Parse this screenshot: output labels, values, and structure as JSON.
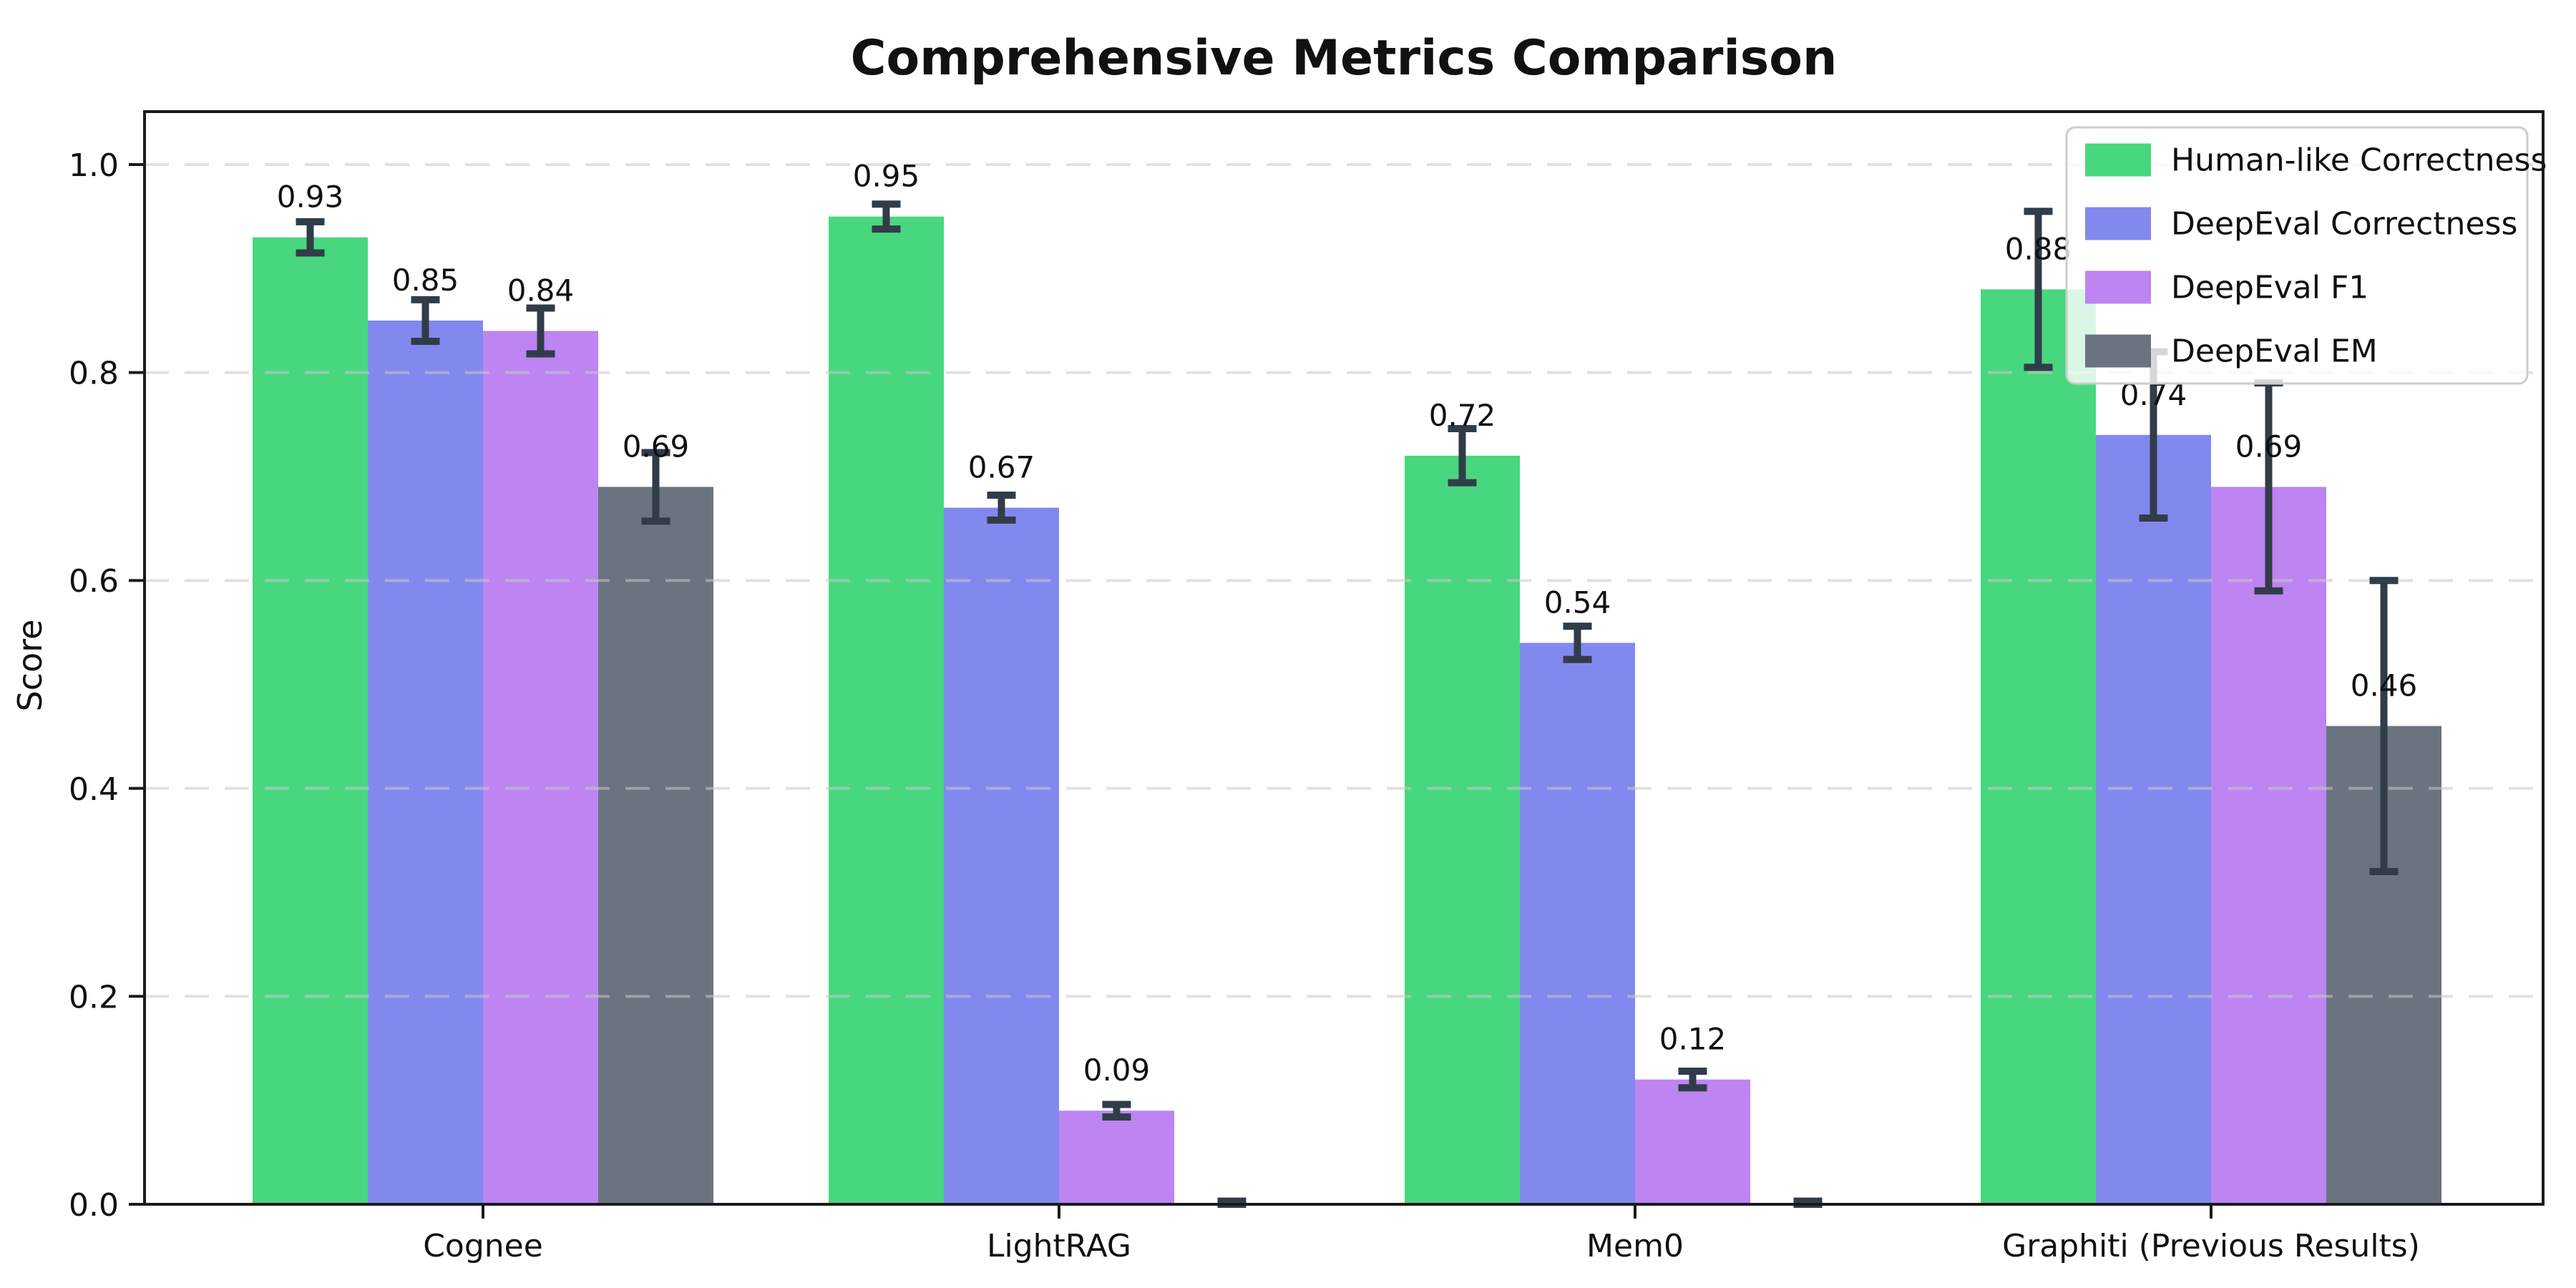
{
  "chart_data": {
    "type": "bar",
    "title": "Comprehensive Metrics Comparison",
    "ylabel": "Score",
    "xlabel": "",
    "ylim": [
      0.0,
      1.05
    ],
    "yticks": [
      0.0,
      0.2,
      0.4,
      0.6,
      0.8,
      1.0
    ],
    "grid": "horizontal-dashed",
    "legend_position": "upper-right",
    "categories": [
      "Cognee",
      "LightRAG",
      "Mem0",
      "Graphiti (Previous Results)"
    ],
    "series": [
      {
        "name": "Human-like Correctness",
        "color": "#48d77e",
        "values": [
          0.93,
          0.95,
          0.72,
          0.88
        ],
        "errors": [
          0.015,
          0.012,
          0.026,
          0.075
        ],
        "labels": [
          "0.93",
          "0.95",
          "0.72",
          "0.88"
        ]
      },
      {
        "name": "DeepEval Correctness",
        "color": "#8289ee",
        "values": [
          0.85,
          0.67,
          0.54,
          0.74
        ],
        "errors": [
          0.02,
          0.012,
          0.016,
          0.08
        ],
        "labels": [
          "0.85",
          "0.67",
          "0.54",
          "0.74"
        ]
      },
      {
        "name": "DeepEval F1",
        "color": "#bd84f2",
        "values": [
          0.84,
          0.09,
          0.12,
          0.69
        ],
        "errors": [
          0.022,
          0.006,
          0.008,
          0.1
        ],
        "labels": [
          "0.84",
          "0.09",
          "0.12",
          "0.69"
        ]
      },
      {
        "name": "DeepEval EM",
        "color": "#6b7280",
        "values": [
          0.69,
          0.0,
          0.0,
          0.46
        ],
        "errors": [
          0.033,
          0.003,
          0.003,
          0.14
        ],
        "labels": [
          "0.69",
          null,
          null,
          "0.46"
        ]
      }
    ],
    "colors": {
      "error_bar": "#313c49",
      "grid_line": "#c9c9c9",
      "axis_spine": "#1a1a1a",
      "plot_background": "#ffffff",
      "legend_background": "rgba(255,255,255,0.8)",
      "legend_border": "#cccccc"
    }
  }
}
